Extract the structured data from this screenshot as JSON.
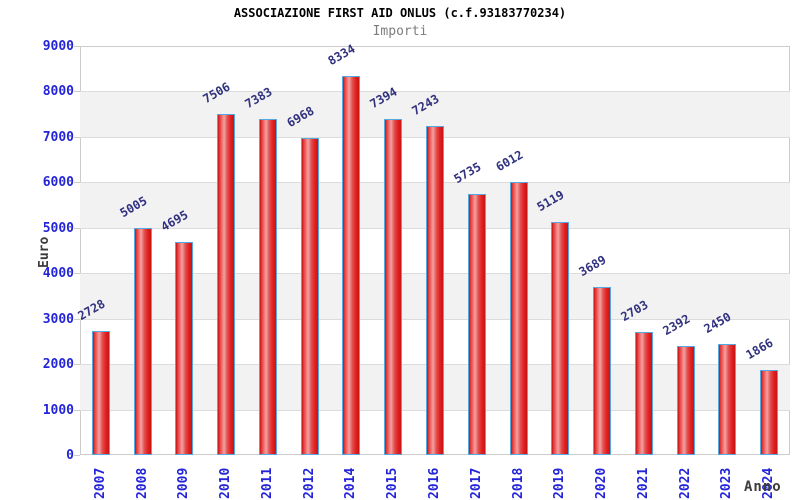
{
  "chart_data": {
    "type": "bar",
    "title": "ASSOCIAZIONE FIRST AID ONLUS (c.f.93183770234)",
    "subtitle": "Importi",
    "xlabel": "Anno",
    "ylabel": "Euro",
    "categories": [
      "2007",
      "2008",
      "2009",
      "2010",
      "2011",
      "2012",
      "2014",
      "2015",
      "2016",
      "2017",
      "2018",
      "2019",
      "2020",
      "2021",
      "2022",
      "2023",
      "2024"
    ],
    "values": [
      2728,
      5005,
      4695,
      7506,
      7383,
      6968,
      8334,
      7394,
      7243,
      5735,
      6012,
      5119,
      3689,
      2703,
      2392,
      2450,
      1866
    ],
    "ylim": [
      0,
      9000
    ],
    "ytick_step": 1000,
    "yticks": [
      0,
      1000,
      2000,
      3000,
      4000,
      5000,
      6000,
      7000,
      8000,
      9000
    ],
    "grid": true,
    "legend": "none",
    "bar_value_labels": true,
    "colors": {
      "title": "#000000",
      "subtitle": "#7d7d7d",
      "axis_title": "#3c3c3c",
      "tick_label": "#2424d8",
      "value_label": "#31317f",
      "band": "#f2f2f2",
      "gridline": "#dcdcdc",
      "plot_border": "#cccccc",
      "bar_border": "#55a9e0",
      "bar_edge_dark": "#c51515",
      "bar_mid1": "#e84040",
      "bar_highlight": "#f5a0a0",
      "bar_mid2": "#e05353",
      "bar_main": "#e62222",
      "background": "#ffffff"
    }
  }
}
